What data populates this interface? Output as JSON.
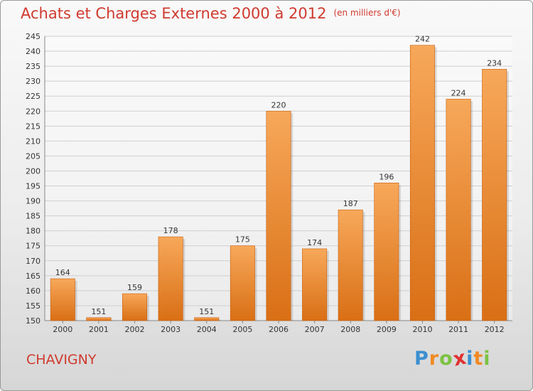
{
  "header": {
    "title": "Achats et Charges Externes 2000 à 2012",
    "unit": "(en milliers d'€)"
  },
  "footer": {
    "city": "CHAVIGNY",
    "logo_letters": [
      "P",
      "r",
      "o",
      "x",
      "i",
      "t",
      "i"
    ],
    "logo_colors": [
      "#3b8fd1",
      "#f08a24",
      "#7cc242",
      "#e03131",
      "#3b8fd1",
      "#f08a24",
      "#7cc242"
    ]
  },
  "colors": {
    "title": "#d03a2f",
    "bar_light": "#f7a85a",
    "bar_dark": "#d96f15",
    "grid": "#cfcfcf"
  },
  "chart_data": {
    "type": "bar",
    "title": "Achats et Charges Externes 2000 à 2012",
    "subtitle": "(en milliers d'€)",
    "xlabel": "",
    "ylabel": "",
    "categories": [
      "2000",
      "2001",
      "2002",
      "2003",
      "2004",
      "2005",
      "2006",
      "2007",
      "2008",
      "2009",
      "2010",
      "2011",
      "2012"
    ],
    "values": [
      164,
      151,
      159,
      178,
      151,
      175,
      220,
      174,
      187,
      196,
      242,
      224,
      234
    ],
    "ylim": [
      150,
      245
    ],
    "ytick_step": 5,
    "grid": true,
    "data_labels": true
  }
}
